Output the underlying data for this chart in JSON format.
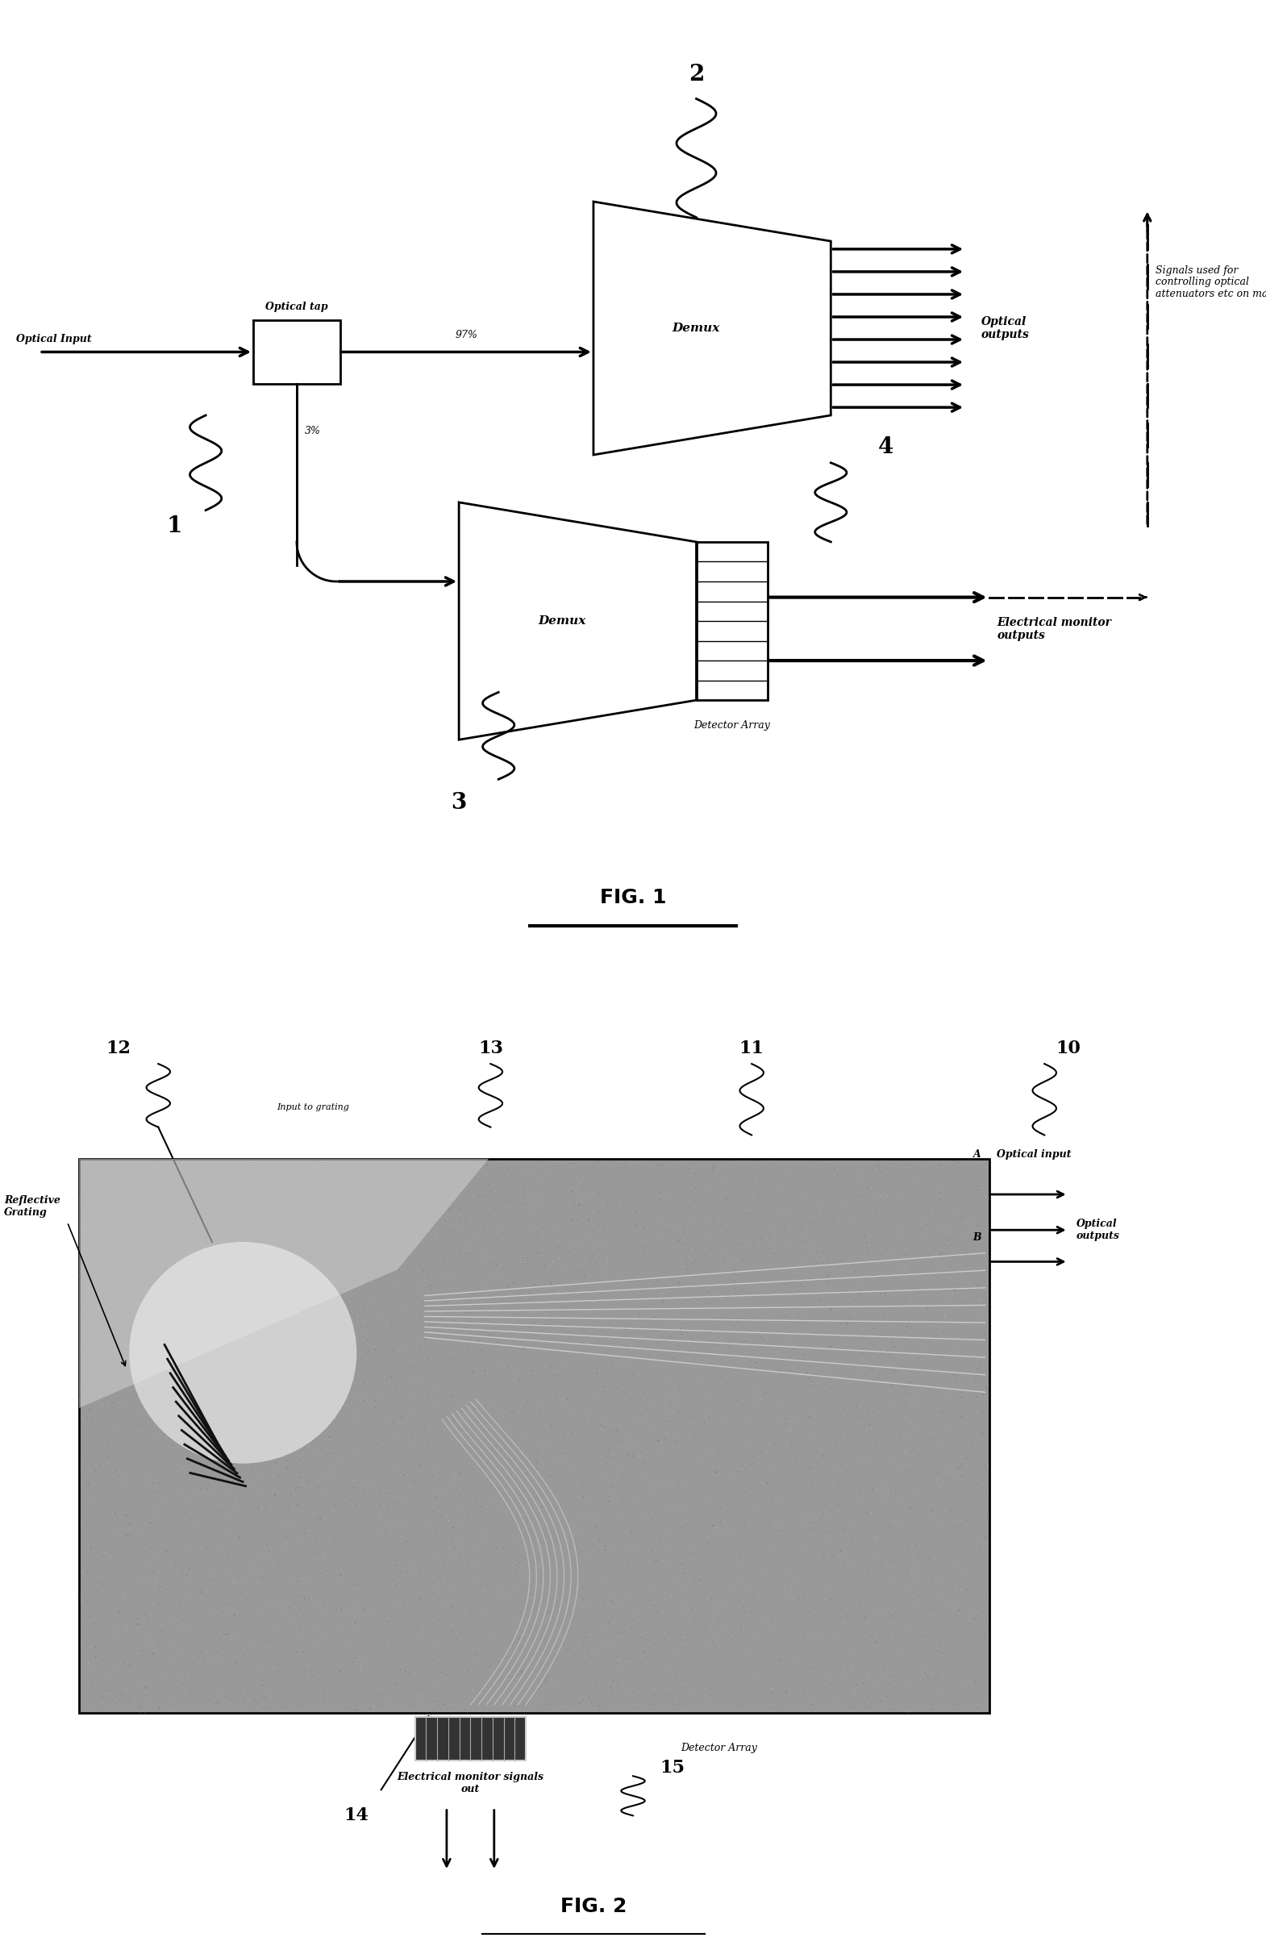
{
  "fig1": {
    "title": "FIG. 1",
    "labels": {
      "optical_input": "Optical Input",
      "optical_tap": "Optical tap",
      "optical_outputs": "Optical\noutputs",
      "demux1": "Demux",
      "demux2": "Demux",
      "pct97": "97%",
      "pct3": "3%",
      "detector_array": "Detector Array",
      "electrical_monitor": "Electrical monitor\noutputs",
      "signals_used": "Signals used for\ncontrolling optical\nattenuators etc on main line",
      "label1": "1",
      "label2": "2",
      "label3": "3",
      "label4": "4"
    }
  },
  "fig2": {
    "title": "FIG. 2",
    "labels": {
      "reflective_grating": "Reflective\nGrating",
      "input_to_grating": "Input to grating",
      "optical_input": "Optical input",
      "optical_outputs": "Optical\noutputs",
      "detector_array": "Detector Array",
      "electrical_monitor": "Electrical monitor signals\nout",
      "label10": "10",
      "label11": "11",
      "label12": "12",
      "label13": "13",
      "label14": "14",
      "label15": "15",
      "labelA": "A",
      "labelB": "B"
    }
  },
  "bg_color": "#ffffff",
  "line_color": "#000000"
}
